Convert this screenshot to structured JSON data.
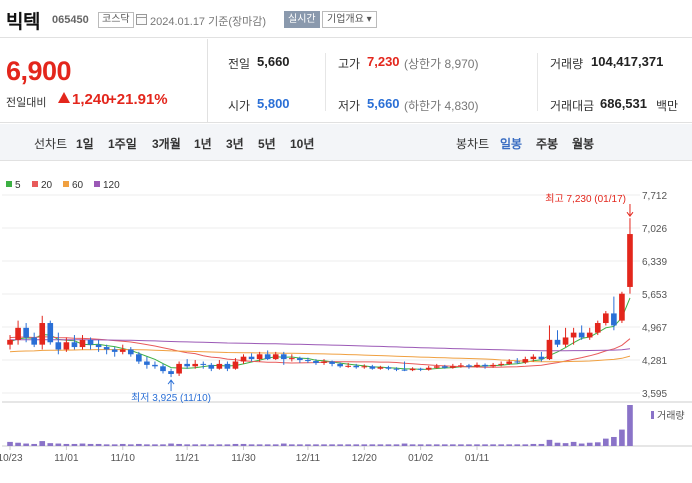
{
  "header": {
    "name": "빅텍",
    "code": "065450",
    "market": "코스닥",
    "date": "2024.01.17 기준(장마감)",
    "live_btn": "실시간",
    "company_btn": "기업개요 ▾"
  },
  "summary": {
    "price": "6,900",
    "change_label": "전일대비",
    "change": "1,240",
    "rate": "+21.91%",
    "prev_label": "전일",
    "prev": "5,660",
    "high_label": "고가",
    "high": "7,230",
    "upper_limit": "(상한가 8,970)",
    "volume_label": "거래량",
    "volume": "104,417,371",
    "open_label": "시가",
    "open": "5,800",
    "low_label": "저가",
    "low": "5,660",
    "lower_limit": "(하한가 4,830)",
    "amount_label": "거래대금",
    "amount": "686,531",
    "amount_unit": "백만"
  },
  "periods": {
    "line_label": "선차트",
    "line": [
      "1일",
      "1주일",
      "3개월",
      "1년",
      "3년",
      "5년",
      "10년"
    ],
    "candle_label": "봉차트",
    "candle": [
      "일봉",
      "주봉",
      "월봉"
    ],
    "selected": "일봉"
  },
  "chart_data": {
    "type": "candlestick",
    "legend": [
      {
        "name": "5",
        "color": "#3cb043"
      },
      {
        "name": "20",
        "color": "#e85a5a"
      },
      {
        "name": "60",
        "color": "#f0a040"
      },
      {
        "name": "120",
        "color": "#9b59b6"
      }
    ],
    "yticks": [
      "7,712",
      "7,026",
      "6,339",
      "5,653",
      "4,967",
      "4,281",
      "3,595"
    ],
    "ylim": [
      3595,
      7712
    ],
    "xticks": [
      "10/23",
      "11/01",
      "11/10",
      "11/21",
      "11/30",
      "12/11",
      "12/20",
      "01/02",
      "01/11"
    ],
    "max_label": "최고 7,230 (01/17)",
    "min_label": "최저 3,925 (11/10)",
    "volume_label": "거래량",
    "candles": [
      {
        "o": 4600,
        "c": 4700,
        "h": 4800,
        "l": 4500
      },
      {
        "o": 4700,
        "c": 4950,
        "h": 5100,
        "l": 4600
      },
      {
        "o": 4950,
        "c": 4750,
        "h": 5050,
        "l": 4650
      },
      {
        "o": 4750,
        "c": 4600,
        "h": 4850,
        "l": 4550
      },
      {
        "o": 4600,
        "c": 5050,
        "h": 5200,
        "l": 4500
      },
      {
        "o": 5050,
        "c": 4650,
        "h": 5100,
        "l": 4600
      },
      {
        "o": 4650,
        "c": 4500,
        "h": 4850,
        "l": 4400
      },
      {
        "o": 4500,
        "c": 4650,
        "h": 4750,
        "l": 4450
      },
      {
        "o": 4650,
        "c": 4550,
        "h": 4800,
        "l": 4500
      },
      {
        "o": 4550,
        "c": 4700,
        "h": 4800,
        "l": 4500
      },
      {
        "o": 4700,
        "c": 4600,
        "h": 4750,
        "l": 4500
      },
      {
        "o": 4600,
        "c": 4550,
        "h": 4700,
        "l": 4450
      },
      {
        "o": 4550,
        "c": 4500,
        "h": 4600,
        "l": 4400
      },
      {
        "o": 4500,
        "c": 4450,
        "h": 4550,
        "l": 4350
      },
      {
        "o": 4450,
        "c": 4500,
        "h": 4600,
        "l": 4400
      },
      {
        "o": 4500,
        "c": 4400,
        "h": 4550,
        "l": 4350
      },
      {
        "o": 4400,
        "c": 4250,
        "h": 4450,
        "l": 4200
      },
      {
        "o": 4250,
        "c": 4180,
        "h": 4350,
        "l": 4100
      },
      {
        "o": 4180,
        "c": 4150,
        "h": 4250,
        "l": 4100
      },
      {
        "o": 4150,
        "c": 4050,
        "h": 4200,
        "l": 4000
      },
      {
        "o": 4050,
        "c": 3990,
        "h": 4100,
        "l": 3925
      },
      {
        "o": 4000,
        "c": 4200,
        "h": 4250,
        "l": 3950
      },
      {
        "o": 4200,
        "c": 4150,
        "h": 4300,
        "l": 4100
      },
      {
        "o": 4150,
        "c": 4200,
        "h": 4280,
        "l": 4100
      },
      {
        "o": 4200,
        "c": 4180,
        "h": 4250,
        "l": 4100
      },
      {
        "o": 4180,
        "c": 4100,
        "h": 4220,
        "l": 4050
      },
      {
        "o": 4100,
        "c": 4200,
        "h": 4280,
        "l": 4080
      },
      {
        "o": 4200,
        "c": 4100,
        "h": 4250,
        "l": 4050
      },
      {
        "o": 4100,
        "c": 4250,
        "h": 4320,
        "l": 4080
      },
      {
        "o": 4250,
        "c": 4350,
        "h": 4400,
        "l": 4200
      },
      {
        "o": 4350,
        "c": 4300,
        "h": 4420,
        "l": 4250
      },
      {
        "o": 4300,
        "c": 4400,
        "h": 4450,
        "l": 4250
      },
      {
        "o": 4400,
        "c": 4300,
        "h": 4480,
        "l": 4280
      },
      {
        "o": 4300,
        "c": 4400,
        "h": 4450,
        "l": 4280
      },
      {
        "o": 4400,
        "c": 4300,
        "h": 4450,
        "l": 4180
      },
      {
        "o": 4300,
        "c": 4320,
        "h": 4400,
        "l": 4250
      },
      {
        "o": 4320,
        "c": 4280,
        "h": 4350,
        "l": 4220
      },
      {
        "o": 4280,
        "c": 4260,
        "h": 4330,
        "l": 4220
      },
      {
        "o": 4260,
        "c": 4220,
        "h": 4300,
        "l": 4180
      },
      {
        "o": 4220,
        "c": 4250,
        "h": 4300,
        "l": 4180
      },
      {
        "o": 4250,
        "c": 4200,
        "h": 4270,
        "l": 4150
      },
      {
        "o": 4200,
        "c": 4150,
        "h": 4230,
        "l": 4120
      },
      {
        "o": 4150,
        "c": 4160,
        "h": 4220,
        "l": 4120
      },
      {
        "o": 4160,
        "c": 4130,
        "h": 4200,
        "l": 4100
      },
      {
        "o": 4130,
        "c": 4150,
        "h": 4190,
        "l": 4100
      },
      {
        "o": 4150,
        "c": 4100,
        "h": 4180,
        "l": 4080
      },
      {
        "o": 4100,
        "c": 4130,
        "h": 4160,
        "l": 4080
      },
      {
        "o": 4130,
        "c": 4100,
        "h": 4160,
        "l": 4070
      },
      {
        "o": 4100,
        "c": 4080,
        "h": 4130,
        "l": 4050
      },
      {
        "o": 4080,
        "c": 4070,
        "h": 4250,
        "l": 4050
      },
      {
        "o": 4070,
        "c": 4100,
        "h": 4130,
        "l": 4050
      },
      {
        "o": 4100,
        "c": 4080,
        "h": 4120,
        "l": 4050
      },
      {
        "o": 4080,
        "c": 4120,
        "h": 4160,
        "l": 4060
      },
      {
        "o": 4120,
        "c": 4150,
        "h": 4200,
        "l": 4100
      },
      {
        "o": 4150,
        "c": 4120,
        "h": 4180,
        "l": 4100
      },
      {
        "o": 4120,
        "c": 4150,
        "h": 4200,
        "l": 4100
      },
      {
        "o": 4150,
        "c": 4170,
        "h": 4220,
        "l": 4120
      },
      {
        "o": 4170,
        "c": 4140,
        "h": 4200,
        "l": 4100
      },
      {
        "o": 4140,
        "c": 4180,
        "h": 4230,
        "l": 4120
      },
      {
        "o": 4180,
        "c": 4150,
        "h": 4210,
        "l": 4100
      },
      {
        "o": 4150,
        "c": 4180,
        "h": 4220,
        "l": 4120
      },
      {
        "o": 4180,
        "c": 4200,
        "h": 4250,
        "l": 4150
      },
      {
        "o": 4200,
        "c": 4250,
        "h": 4300,
        "l": 4180
      },
      {
        "o": 4250,
        "c": 4230,
        "h": 4320,
        "l": 4200
      },
      {
        "o": 4230,
        "c": 4300,
        "h": 4350,
        "l": 4200
      },
      {
        "o": 4300,
        "c": 4350,
        "h": 4400,
        "l": 4250
      },
      {
        "o": 4350,
        "c": 4300,
        "h": 4450,
        "l": 4250
      },
      {
        "o": 4300,
        "c": 4700,
        "h": 5000,
        "l": 4280
      },
      {
        "o": 4700,
        "c": 4600,
        "h": 4900,
        "l": 4550
      },
      {
        "o": 4600,
        "c": 4750,
        "h": 4950,
        "l": 4550
      },
      {
        "o": 4750,
        "c": 4850,
        "h": 4950,
        "l": 4600
      },
      {
        "o": 4850,
        "c": 4750,
        "h": 5000,
        "l": 4700
      },
      {
        "o": 4750,
        "c": 4850,
        "h": 4950,
        "l": 4700
      },
      {
        "o": 4850,
        "c": 5050,
        "h": 5100,
        "l": 4800
      },
      {
        "o": 5050,
        "c": 5250,
        "h": 5300,
        "l": 5000
      },
      {
        "o": 5250,
        "c": 5000,
        "h": 5600,
        "l": 4900
      },
      {
        "o": 5100,
        "c": 5660,
        "h": 5700,
        "l": 5050
      },
      {
        "o": 5800,
        "c": 6900,
        "h": 7230,
        "l": 5660
      }
    ],
    "volume": [
      10,
      8,
      6,
      5,
      12,
      7,
      6,
      5,
      5,
      6,
      5,
      5,
      4,
      4,
      5,
      4,
      5,
      4,
      4,
      4,
      6,
      5,
      4,
      4,
      4,
      4,
      4,
      4,
      5,
      5,
      4,
      4,
      4,
      4,
      6,
      4,
      4,
      4,
      4,
      4,
      4,
      4,
      4,
      4,
      4,
      4,
      4,
      4,
      4,
      6,
      4,
      4,
      4,
      4,
      4,
      4,
      4,
      4,
      4,
      4,
      4,
      4,
      4,
      4,
      4,
      5,
      5,
      15,
      8,
      7,
      10,
      6,
      8,
      9,
      18,
      22,
      40,
      100
    ]
  }
}
